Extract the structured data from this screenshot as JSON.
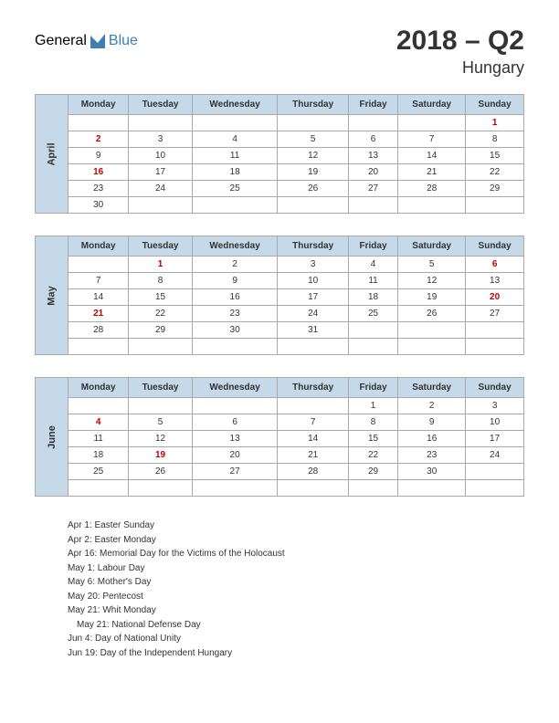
{
  "logo": {
    "part1": "General",
    "part2": "Blue"
  },
  "title": "2018 – Q2",
  "subtitle": "Hungary",
  "colors": {
    "header_bg": "#c5d9e8",
    "holiday_text": "#c00000",
    "border": "#aaaaaa"
  },
  "day_headers": [
    "Monday",
    "Tuesday",
    "Wednesday",
    "Thursday",
    "Friday",
    "Saturday",
    "Sunday"
  ],
  "months": [
    {
      "name": "April",
      "weeks": [
        [
          {
            "d": ""
          },
          {
            "d": ""
          },
          {
            "d": ""
          },
          {
            "d": ""
          },
          {
            "d": ""
          },
          {
            "d": ""
          },
          {
            "d": "1",
            "h": true
          }
        ],
        [
          {
            "d": "2",
            "h": true
          },
          {
            "d": "3"
          },
          {
            "d": "4"
          },
          {
            "d": "5"
          },
          {
            "d": "6"
          },
          {
            "d": "7"
          },
          {
            "d": "8"
          }
        ],
        [
          {
            "d": "9"
          },
          {
            "d": "10"
          },
          {
            "d": "11"
          },
          {
            "d": "12"
          },
          {
            "d": "13"
          },
          {
            "d": "14"
          },
          {
            "d": "15"
          }
        ],
        [
          {
            "d": "16",
            "h": true
          },
          {
            "d": "17"
          },
          {
            "d": "18"
          },
          {
            "d": "19"
          },
          {
            "d": "20"
          },
          {
            "d": "21"
          },
          {
            "d": "22"
          }
        ],
        [
          {
            "d": "23"
          },
          {
            "d": "24"
          },
          {
            "d": "25"
          },
          {
            "d": "26"
          },
          {
            "d": "27"
          },
          {
            "d": "28"
          },
          {
            "d": "29"
          }
        ],
        [
          {
            "d": "30"
          },
          {
            "d": ""
          },
          {
            "d": ""
          },
          {
            "d": ""
          },
          {
            "d": ""
          },
          {
            "d": ""
          },
          {
            "d": ""
          }
        ]
      ]
    },
    {
      "name": "May",
      "weeks": [
        [
          {
            "d": ""
          },
          {
            "d": "1",
            "h": true
          },
          {
            "d": "2"
          },
          {
            "d": "3"
          },
          {
            "d": "4"
          },
          {
            "d": "5"
          },
          {
            "d": "6",
            "h": true
          }
        ],
        [
          {
            "d": "7"
          },
          {
            "d": "8"
          },
          {
            "d": "9"
          },
          {
            "d": "10"
          },
          {
            "d": "11"
          },
          {
            "d": "12"
          },
          {
            "d": "13"
          }
        ],
        [
          {
            "d": "14"
          },
          {
            "d": "15"
          },
          {
            "d": "16"
          },
          {
            "d": "17"
          },
          {
            "d": "18"
          },
          {
            "d": "19"
          },
          {
            "d": "20",
            "h": true
          }
        ],
        [
          {
            "d": "21",
            "h": true
          },
          {
            "d": "22"
          },
          {
            "d": "23"
          },
          {
            "d": "24"
          },
          {
            "d": "25"
          },
          {
            "d": "26"
          },
          {
            "d": "27"
          }
        ],
        [
          {
            "d": "28"
          },
          {
            "d": "29"
          },
          {
            "d": "30"
          },
          {
            "d": "31"
          },
          {
            "d": ""
          },
          {
            "d": ""
          },
          {
            "d": ""
          }
        ],
        [
          {
            "d": ""
          },
          {
            "d": ""
          },
          {
            "d": ""
          },
          {
            "d": ""
          },
          {
            "d": ""
          },
          {
            "d": ""
          },
          {
            "d": ""
          }
        ]
      ]
    },
    {
      "name": "June",
      "weeks": [
        [
          {
            "d": ""
          },
          {
            "d": ""
          },
          {
            "d": ""
          },
          {
            "d": ""
          },
          {
            "d": "1"
          },
          {
            "d": "2"
          },
          {
            "d": "3"
          }
        ],
        [
          {
            "d": "4",
            "h": true
          },
          {
            "d": "5"
          },
          {
            "d": "6"
          },
          {
            "d": "7"
          },
          {
            "d": "8"
          },
          {
            "d": "9"
          },
          {
            "d": "10"
          }
        ],
        [
          {
            "d": "11"
          },
          {
            "d": "12"
          },
          {
            "d": "13"
          },
          {
            "d": "14"
          },
          {
            "d": "15"
          },
          {
            "d": "16"
          },
          {
            "d": "17"
          }
        ],
        [
          {
            "d": "18"
          },
          {
            "d": "19",
            "h": true
          },
          {
            "d": "20"
          },
          {
            "d": "21"
          },
          {
            "d": "22"
          },
          {
            "d": "23"
          },
          {
            "d": "24"
          }
        ],
        [
          {
            "d": "25"
          },
          {
            "d": "26"
          },
          {
            "d": "27"
          },
          {
            "d": "28"
          },
          {
            "d": "29"
          },
          {
            "d": "30"
          },
          {
            "d": ""
          }
        ],
        [
          {
            "d": ""
          },
          {
            "d": ""
          },
          {
            "d": ""
          },
          {
            "d": ""
          },
          {
            "d": ""
          },
          {
            "d": ""
          },
          {
            "d": ""
          }
        ]
      ]
    }
  ],
  "holidays": [
    {
      "text": "Apr 1: Easter Sunday",
      "indent": false
    },
    {
      "text": "Apr 2: Easter Monday",
      "indent": false
    },
    {
      "text": "Apr 16: Memorial Day for the Victims of the Holocaust",
      "indent": false
    },
    {
      "text": "May 1: Labour Day",
      "indent": false
    },
    {
      "text": "May 6: Mother's Day",
      "indent": false
    },
    {
      "text": "May 20: Pentecost",
      "indent": false
    },
    {
      "text": "May 21: Whit Monday",
      "indent": false
    },
    {
      "text": "May 21: National Defense Day",
      "indent": true
    },
    {
      "text": "Jun 4: Day of National Unity",
      "indent": false
    },
    {
      "text": "Jun 19: Day of the Independent Hungary",
      "indent": false
    }
  ]
}
